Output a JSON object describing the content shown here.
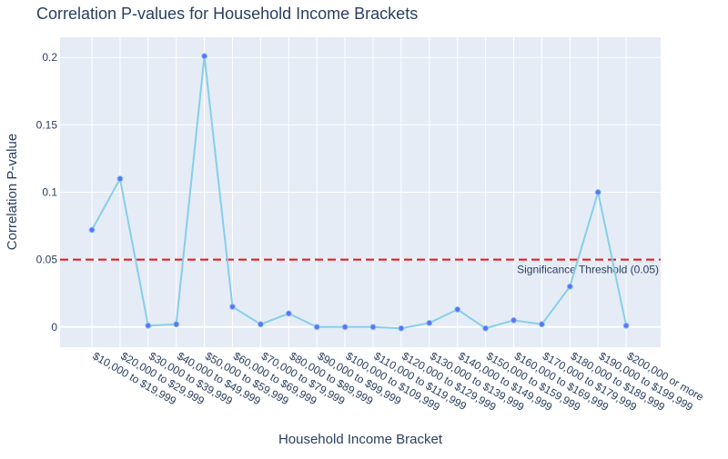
{
  "chart_data": {
    "type": "line",
    "title": "Correlation P-values for Household Income Brackets",
    "xlabel": "Household Income Bracket",
    "ylabel": "Correlation P-value",
    "categories": [
      "$10,000 to $19,999",
      "$20,000 to $29,999",
      "$30,000 to $39,999",
      "$40,000 to $49,999",
      "$50,000 to $59,999",
      "$60,000 to $69,999",
      "$70,000 to $79,999",
      "$80,000 to $89,999",
      "$90,000 to $99,999",
      "$100,000 to $109,999",
      "$110,000 to $119,999",
      "$120,000 to $129,999",
      "$130,000 to $139,999",
      "$140,000 to $149,999",
      "$150,000 to $159,999",
      "$160,000 to $169,999",
      "$170,000 to $179,999",
      "$180,000 to $189,999",
      "$190,000 to $199,999",
      "$200,000 or more"
    ],
    "values": [
      0.072,
      0.11,
      0.001,
      0.002,
      0.201,
      0.015,
      0.002,
      0.01,
      0.0,
      0.0,
      0.0,
      -0.001,
      0.003,
      0.013,
      -0.001,
      0.005,
      0.002,
      0.03,
      0.1,
      0.001
    ],
    "ylim": [
      -0.015,
      0.215
    ],
    "yticks": [
      0,
      0.05,
      0.1,
      0.15,
      0.2
    ],
    "ytick_labels": [
      "0",
      "0.05",
      "0.1",
      "0.15",
      "0.2"
    ],
    "grid": true,
    "threshold": {
      "value": 0.05,
      "label": "Significance Threshold (0.05)",
      "color": "#ee1111"
    },
    "colors": {
      "line": "#87ceeb",
      "marker": "#636efa",
      "plot_bg": "#e5ecf6",
      "grid": "#ffffff",
      "text": "#2a3f5f"
    }
  }
}
